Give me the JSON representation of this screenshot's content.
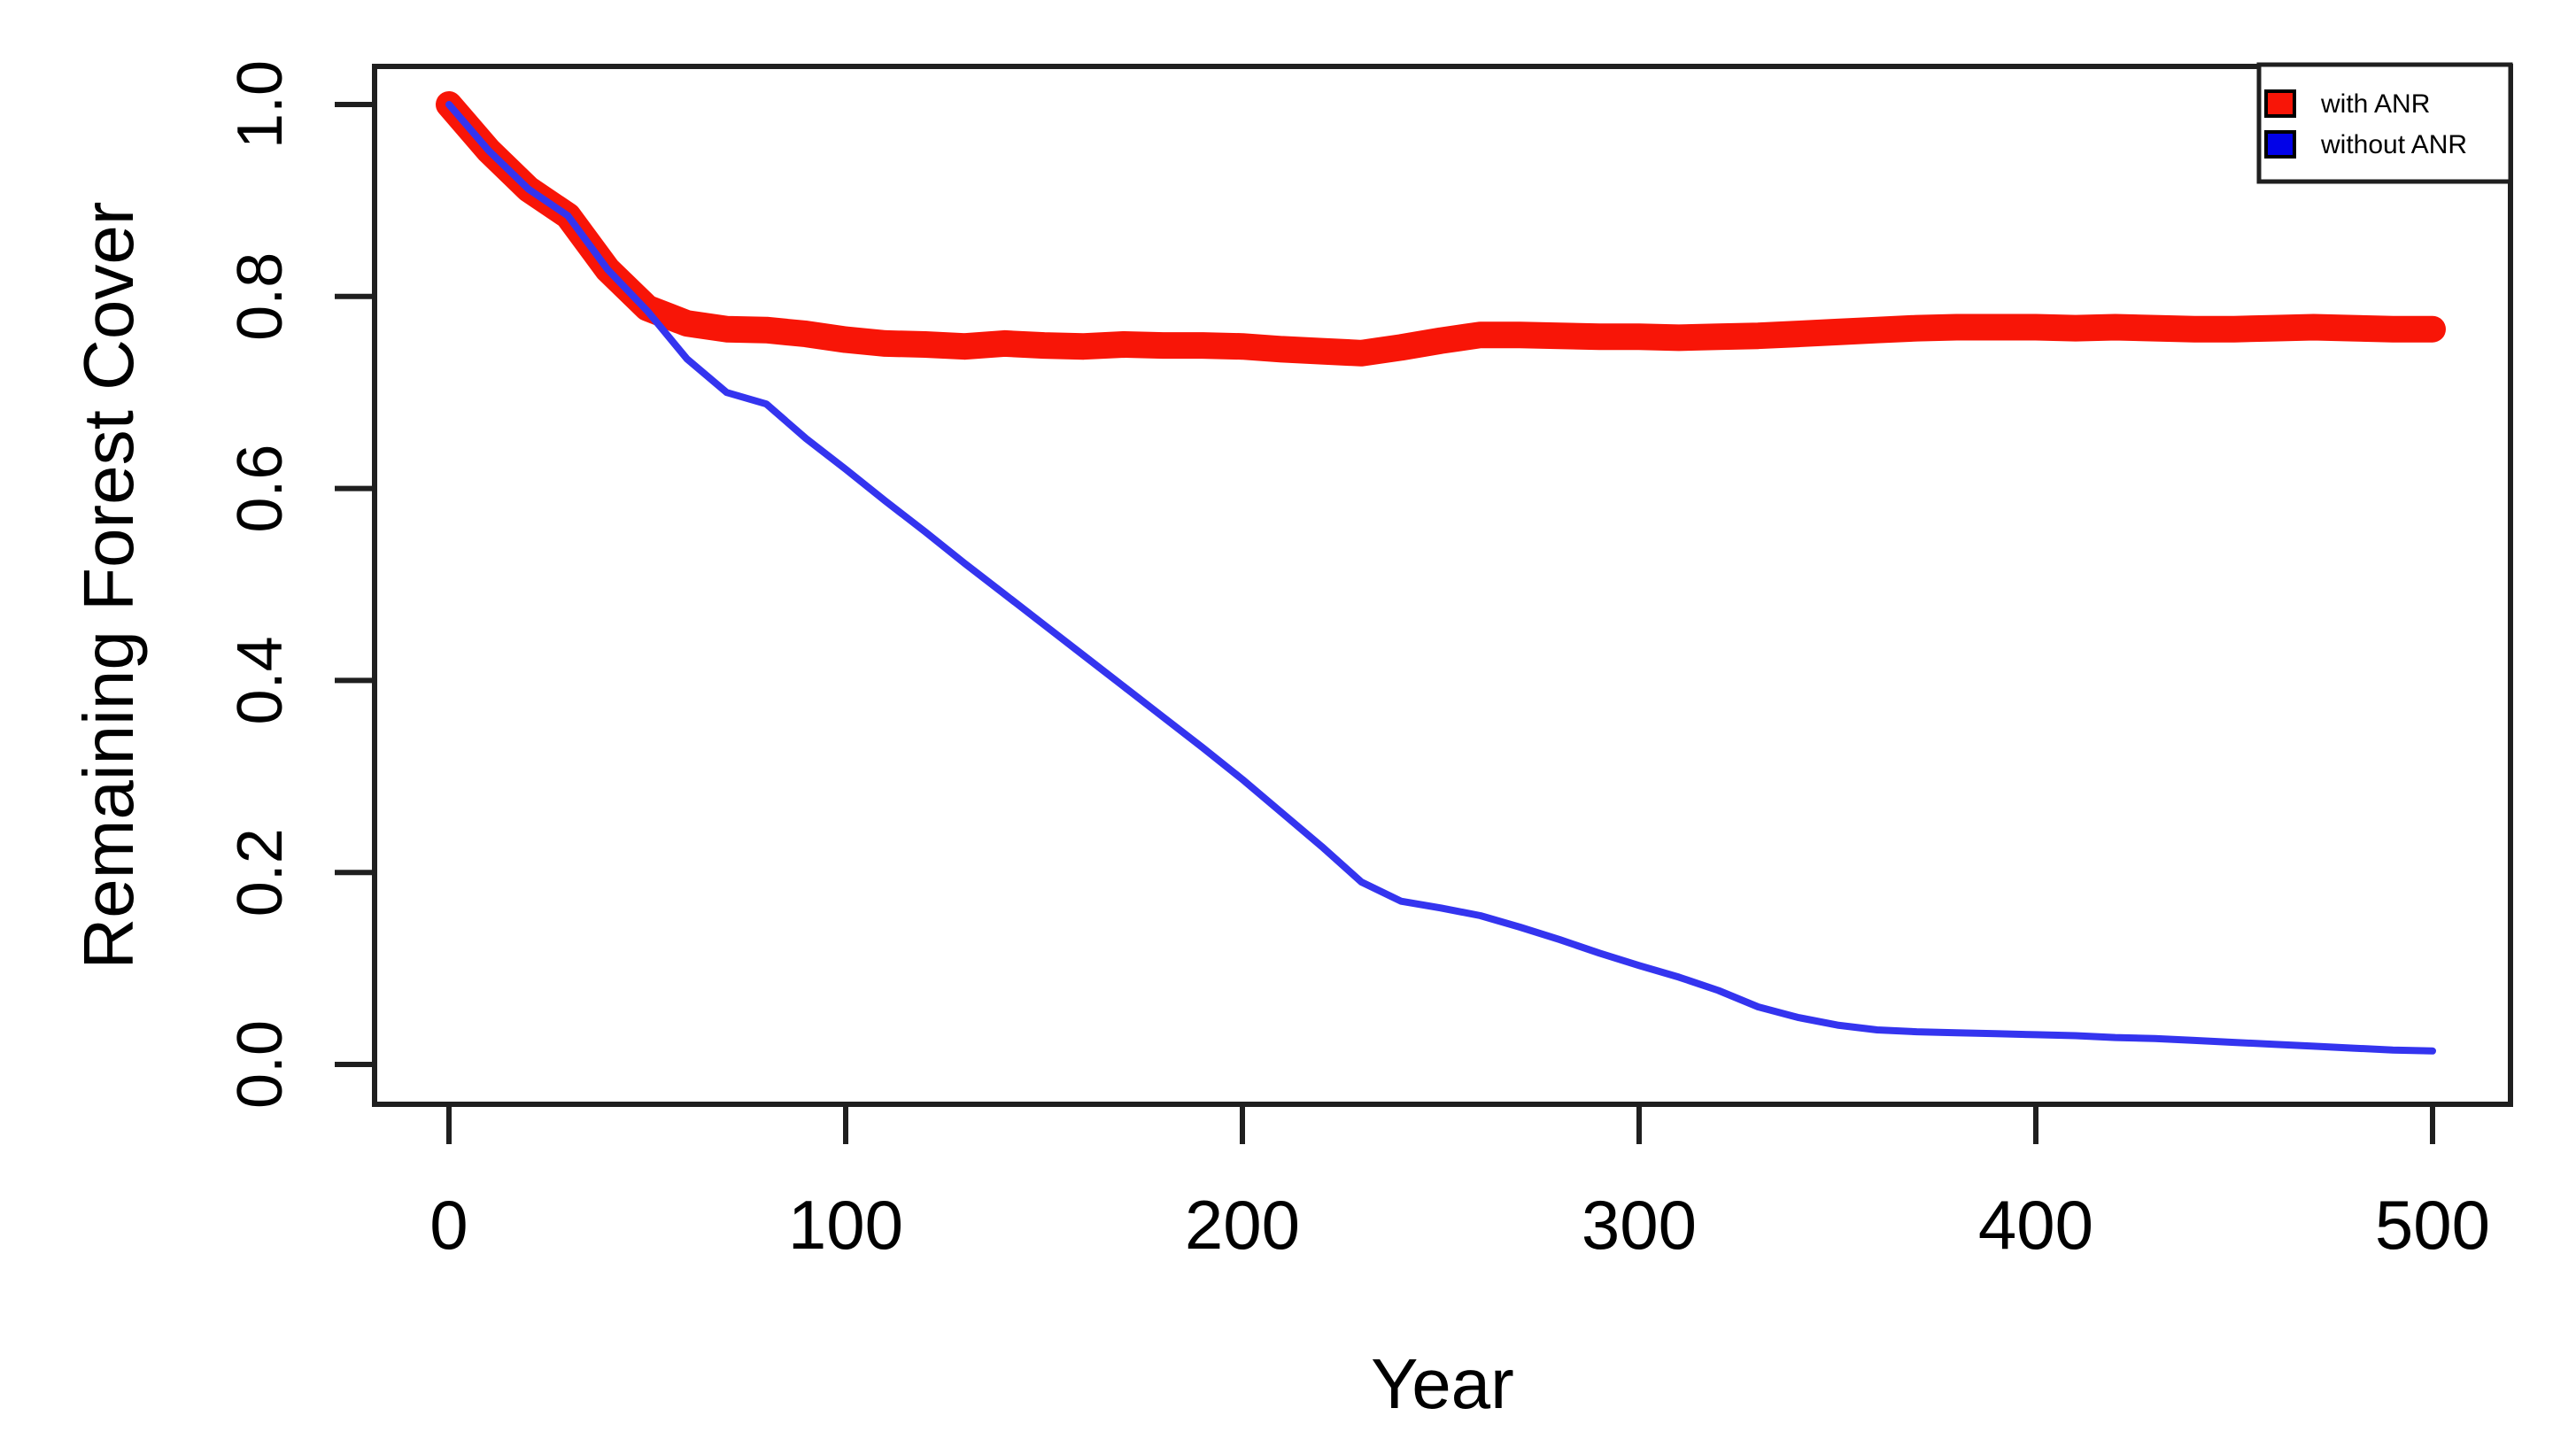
{
  "figure": {
    "background": "#ffffff",
    "axis_color": "#1f1f1f",
    "text_color": "#000000"
  },
  "chart_data": {
    "type": "line",
    "title": "",
    "xlabel": "Year",
    "ylabel": "Remaining Forest Cover",
    "xlim": [
      0,
      500
    ],
    "ylim": [
      0.0,
      1.0
    ],
    "x_ticks": [
      "0",
      "100",
      "200",
      "300",
      "400",
      "500"
    ],
    "y_ticks": [
      "0.0",
      "0.2",
      "0.4",
      "0.6",
      "0.8",
      "1.0"
    ],
    "grid": false,
    "legend": {
      "position": "top-right",
      "entries": [
        {
          "label": "with ANR",
          "color": "#f81507",
          "marker": "filled-square"
        },
        {
          "label": "without ANR",
          "color": "#0202e8",
          "marker": "filled-square"
        }
      ]
    },
    "series": [
      {
        "name": "with ANR",
        "color": "#f81507",
        "line_width": 30,
        "x": [
          0,
          10,
          20,
          30,
          40,
          50,
          60,
          70,
          80,
          90,
          100,
          110,
          120,
          130,
          140,
          150,
          160,
          170,
          180,
          190,
          200,
          210,
          220,
          230,
          240,
          250,
          260,
          270,
          280,
          290,
          300,
          310,
          320,
          330,
          340,
          350,
          360,
          370,
          380,
          390,
          400,
          410,
          420,
          430,
          440,
          450,
          460,
          470,
          480,
          490,
          500
        ],
        "y": [
          1.0,
          0.952,
          0.912,
          0.884,
          0.828,
          0.788,
          0.772,
          0.766,
          0.765,
          0.761,
          0.755,
          0.751,
          0.75,
          0.748,
          0.751,
          0.749,
          0.748,
          0.75,
          0.749,
          0.749,
          0.748,
          0.745,
          0.743,
          0.741,
          0.747,
          0.754,
          0.76,
          0.76,
          0.759,
          0.758,
          0.758,
          0.757,
          0.758,
          0.759,
          0.761,
          0.763,
          0.765,
          0.767,
          0.768,
          0.768,
          0.768,
          0.767,
          0.768,
          0.767,
          0.766,
          0.766,
          0.767,
          0.768,
          0.767,
          0.766,
          0.766
        ]
      },
      {
        "name": "without ANR",
        "color": "#3434ef",
        "line_width": 8,
        "x": [
          0,
          10,
          20,
          30,
          40,
          50,
          60,
          70,
          80,
          90,
          100,
          110,
          120,
          130,
          140,
          150,
          160,
          170,
          180,
          190,
          200,
          210,
          220,
          230,
          240,
          250,
          260,
          270,
          280,
          290,
          300,
          310,
          320,
          330,
          340,
          350,
          360,
          370,
          380,
          390,
          400,
          410,
          420,
          430,
          440,
          450,
          460,
          470,
          480,
          490,
          500
        ],
        "y": [
          1.0,
          0.952,
          0.912,
          0.884,
          0.828,
          0.785,
          0.735,
          0.7,
          0.688,
          0.652,
          0.62,
          0.587,
          0.555,
          0.522,
          0.49,
          0.458,
          0.426,
          0.394,
          0.362,
          0.33,
          0.297,
          0.262,
          0.227,
          0.19,
          0.17,
          0.163,
          0.155,
          0.143,
          0.13,
          0.116,
          0.103,
          0.091,
          0.077,
          0.06,
          0.049,
          0.041,
          0.036,
          0.034,
          0.033,
          0.032,
          0.031,
          0.03,
          0.028,
          0.027,
          0.025,
          0.023,
          0.021,
          0.019,
          0.017,
          0.015,
          0.014
        ]
      }
    ]
  }
}
